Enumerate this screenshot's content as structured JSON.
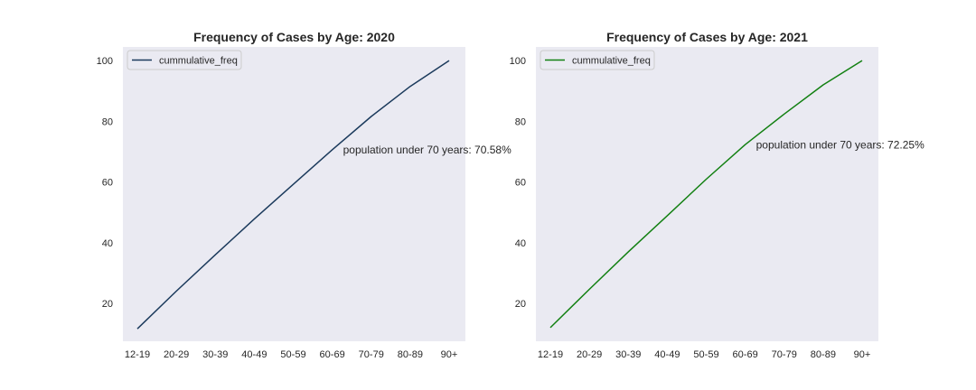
{
  "chart_data": [
    {
      "type": "line",
      "title": "Frequency of Cases by Age: 2020",
      "xlabel": "",
      "ylabel": "",
      "categories": [
        "12-19",
        "20-29",
        "30-39",
        "40-49",
        "50-59",
        "60-69",
        "70-79",
        "80-89",
        "90+"
      ],
      "series": [
        {
          "name": "cummulative_freq",
          "color": "#1b3a5c",
          "values": [
            11.6,
            24.0,
            36.0,
            47.8,
            59.2,
            70.6,
            81.6,
            91.5,
            100.0
          ]
        }
      ],
      "yticks": [
        20,
        40,
        60,
        80,
        100
      ],
      "ylim": [
        7.5,
        104.5
      ],
      "grid": false,
      "legend": "top-left",
      "annotation": {
        "text": "population under 70 years: 70.58%",
        "x": "60-69",
        "y": 70.58
      }
    },
    {
      "type": "line",
      "title": "Frequency of Cases by Age: 2021",
      "xlabel": "",
      "ylabel": "",
      "categories": [
        "12-19",
        "20-29",
        "30-39",
        "40-49",
        "50-59",
        "60-69",
        "70-79",
        "80-89",
        "90+"
      ],
      "series": [
        {
          "name": "cummulative_freq",
          "color": "#128012",
          "values": [
            12.0,
            24.6,
            37.0,
            48.9,
            60.9,
            72.3,
            82.4,
            92.0,
            100.0
          ]
        }
      ],
      "yticks": [
        20,
        40,
        60,
        80,
        100
      ],
      "ylim": [
        7.5,
        104.5
      ],
      "grid": false,
      "legend": "top-left",
      "annotation": {
        "text": "population under 70 years: 72.25%",
        "x": "60-69",
        "y": 72.25
      }
    }
  ],
  "colors": {
    "axes_background": "#eaeaf2",
    "text": "#262626"
  }
}
